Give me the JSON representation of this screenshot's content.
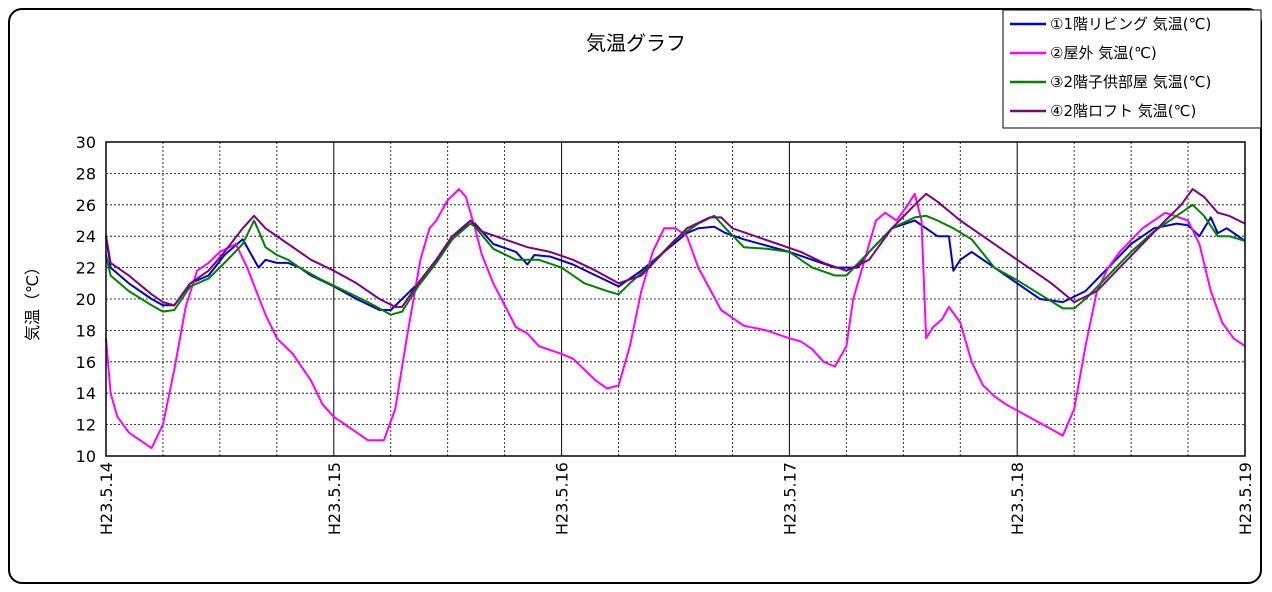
{
  "chart_data": {
    "type": "line",
    "title": "気温グラフ",
    "ylabel": "気温（℃）",
    "xlabel": "",
    "ylim": [
      10,
      30
    ],
    "yticks": [
      10,
      12,
      14,
      16,
      18,
      20,
      22,
      24,
      26,
      28,
      30
    ],
    "xlim": [
      0,
      5
    ],
    "x_tick_labels": [
      "H23.5.14",
      "H23.5.15",
      "H23.5.16",
      "H23.5.17",
      "H23.5.18",
      "H23.5.19"
    ],
    "x_tick_values": [
      0,
      1,
      2,
      3,
      4,
      5
    ],
    "grid": true,
    "legend_position": "top-right",
    "series": [
      {
        "name": "①1階リビング 気温(℃)",
        "color": "#0000cc",
        "x": [
          0,
          0.02,
          0.1,
          0.2,
          0.25,
          0.3,
          0.37,
          0.45,
          0.52,
          0.6,
          0.67,
          0.7,
          0.75,
          0.8,
          0.85,
          0.9,
          1.0,
          1.1,
          1.2,
          1.25,
          1.3,
          1.37,
          1.45,
          1.52,
          1.6,
          1.62,
          1.7,
          1.8,
          1.85,
          1.88,
          1.95,
          2.05,
          2.15,
          2.25,
          2.35,
          2.45,
          2.55,
          2.6,
          2.67,
          2.72,
          2.8,
          2.9,
          3.0,
          3.1,
          3.2,
          3.3,
          3.35,
          3.45,
          3.55,
          3.6,
          3.65,
          3.7,
          3.72,
          3.75,
          3.8,
          3.9,
          4.0,
          4.1,
          4.2,
          4.3,
          4.4,
          4.5,
          4.6,
          4.7,
          4.75,
          4.8,
          4.85,
          4.88,
          4.92,
          4.97,
          5.0
        ],
        "values": [
          24.0,
          22.0,
          21.0,
          20.0,
          19.6,
          19.6,
          21.0,
          21.5,
          22.8,
          23.8,
          22.0,
          22.5,
          22.3,
          22.3,
          22.0,
          21.5,
          20.8,
          20.0,
          19.3,
          19.3,
          20.0,
          21.0,
          22.5,
          24.0,
          24.8,
          24.8,
          23.5,
          23.0,
          22.2,
          22.8,
          22.7,
          22.2,
          21.5,
          20.8,
          21.8,
          23.0,
          24.2,
          24.5,
          24.6,
          24.2,
          23.8,
          23.4,
          23.0,
          22.5,
          22.0,
          22.0,
          23.0,
          24.5,
          25.0,
          24.5,
          24.0,
          24.0,
          21.8,
          22.5,
          23.0,
          22.0,
          21.0,
          20.0,
          19.8,
          20.5,
          22.0,
          23.5,
          24.5,
          24.8,
          24.7,
          24.0,
          25.2,
          24.2,
          24.5,
          24.0,
          23.7
        ]
      },
      {
        "name": "②屋外 気温(℃)",
        "color": "#ff00ff",
        "x": [
          0,
          0.02,
          0.05,
          0.1,
          0.15,
          0.2,
          0.25,
          0.3,
          0.35,
          0.4,
          0.45,
          0.5,
          0.57,
          0.62,
          0.7,
          0.75,
          0.82,
          0.9,
          0.95,
          1.0,
          1.05,
          1.1,
          1.15,
          1.22,
          1.27,
          1.32,
          1.38,
          1.42,
          1.45,
          1.5,
          1.55,
          1.58,
          1.62,
          1.65,
          1.7,
          1.8,
          1.85,
          1.9,
          2.0,
          2.05,
          2.1,
          2.15,
          2.2,
          2.25,
          2.3,
          2.35,
          2.4,
          2.45,
          2.5,
          2.55,
          2.6,
          2.7,
          2.8,
          2.9,
          3.0,
          3.05,
          3.1,
          3.15,
          3.2,
          3.25,
          3.28,
          3.33,
          3.38,
          3.42,
          3.47,
          3.52,
          3.55,
          3.58,
          3.6,
          3.63,
          3.67,
          3.7,
          3.75,
          3.8,
          3.85,
          3.9,
          3.95,
          4.05,
          4.15,
          4.2,
          4.25,
          4.3,
          4.35,
          4.4,
          4.45,
          4.55,
          4.65,
          4.75,
          4.8,
          4.85,
          4.9,
          4.95,
          5.0
        ],
        "values": [
          17.5,
          14.0,
          12.5,
          11.5,
          11.0,
          10.5,
          12.0,
          15.5,
          19.5,
          21.8,
          22.3,
          23.0,
          23.5,
          22.0,
          19.0,
          17.5,
          16.5,
          14.8,
          13.3,
          12.5,
          12.0,
          11.5,
          11.0,
          11.0,
          13.0,
          17.5,
          22.5,
          24.5,
          25.0,
          26.3,
          27.0,
          26.5,
          24.5,
          22.8,
          21.0,
          18.2,
          17.8,
          17.0,
          16.5,
          16.2,
          15.5,
          14.8,
          14.3,
          14.5,
          17.0,
          20.5,
          23.0,
          24.5,
          24.5,
          24.0,
          22.0,
          19.3,
          18.3,
          18.0,
          17.5,
          17.3,
          16.8,
          16.0,
          15.7,
          17.0,
          20.0,
          22.5,
          25.0,
          25.5,
          25.0,
          26.0,
          26.7,
          25.0,
          17.5,
          18.2,
          18.7,
          19.5,
          18.5,
          16.0,
          14.5,
          13.8,
          13.3,
          12.5,
          11.7,
          11.3,
          13.0,
          17.0,
          20.5,
          22.0,
          23.0,
          24.5,
          25.5,
          25.0,
          23.5,
          20.5,
          18.5,
          17.5,
          17.0
        ]
      },
      {
        "name": "③2階子供部屋 気温(℃)",
        "color": "#008000",
        "x": [
          0,
          0.02,
          0.1,
          0.2,
          0.25,
          0.3,
          0.37,
          0.45,
          0.52,
          0.6,
          0.65,
          0.68,
          0.7,
          0.75,
          0.8,
          0.85,
          0.95,
          1.05,
          1.15,
          1.25,
          1.3,
          1.37,
          1.45,
          1.52,
          1.6,
          1.62,
          1.7,
          1.8,
          1.9,
          2.0,
          2.1,
          2.2,
          2.25,
          2.3,
          2.4,
          2.5,
          2.6,
          2.67,
          2.72,
          2.8,
          2.9,
          3.0,
          3.1,
          3.2,
          3.25,
          3.35,
          3.45,
          3.55,
          3.6,
          3.65,
          3.72,
          3.8,
          3.9,
          4.0,
          4.1,
          4.2,
          4.25,
          4.3,
          4.4,
          4.5,
          4.6,
          4.7,
          4.77,
          4.82,
          4.88,
          4.93,
          5.0
        ],
        "values": [
          22.8,
          21.5,
          20.5,
          19.6,
          19.2,
          19.3,
          20.8,
          21.3,
          22.3,
          23.5,
          25.0,
          24.0,
          23.3,
          22.8,
          22.5,
          22.0,
          21.2,
          20.5,
          19.8,
          19.0,
          19.2,
          20.8,
          22.3,
          23.8,
          24.8,
          24.6,
          23.2,
          22.5,
          22.5,
          22.0,
          21.0,
          20.5,
          20.3,
          21.0,
          22.3,
          23.8,
          24.8,
          25.3,
          24.5,
          23.3,
          23.2,
          23.0,
          22.0,
          21.5,
          21.5,
          23.0,
          24.5,
          25.2,
          25.3,
          25.0,
          24.5,
          23.8,
          22.0,
          21.2,
          20.3,
          19.4,
          19.4,
          20.0,
          21.5,
          23.0,
          24.3,
          25.3,
          26.0,
          25.3,
          24.0,
          24.0,
          23.7
        ]
      },
      {
        "name": "④2階ロフト 気温(℃)",
        "color": "#800080",
        "x": [
          0,
          0.02,
          0.1,
          0.2,
          0.25,
          0.3,
          0.37,
          0.45,
          0.52,
          0.6,
          0.65,
          0.7,
          0.8,
          0.9,
          1.0,
          1.1,
          1.2,
          1.27,
          1.3,
          1.37,
          1.45,
          1.52,
          1.6,
          1.65,
          1.75,
          1.85,
          1.95,
          2.05,
          2.15,
          2.25,
          2.35,
          2.45,
          2.55,
          2.65,
          2.7,
          2.75,
          2.85,
          2.95,
          3.05,
          3.15,
          3.25,
          3.35,
          3.45,
          3.55,
          3.6,
          3.65,
          3.75,
          3.85,
          3.95,
          4.05,
          4.15,
          4.25,
          4.35,
          4.45,
          4.55,
          4.65,
          4.72,
          4.77,
          4.82,
          4.88,
          4.93,
          5.0
        ],
        "values": [
          24.0,
          22.3,
          21.5,
          20.3,
          19.8,
          19.6,
          21.0,
          21.8,
          23.0,
          24.5,
          25.3,
          24.5,
          23.5,
          22.5,
          21.8,
          21.0,
          20.0,
          19.5,
          19.5,
          21.0,
          22.5,
          24.0,
          25.0,
          24.3,
          23.8,
          23.3,
          23.0,
          22.5,
          21.8,
          21.0,
          21.5,
          23.0,
          24.5,
          25.2,
          25.2,
          24.5,
          24.0,
          23.5,
          23.0,
          22.3,
          21.8,
          22.5,
          24.5,
          26.0,
          26.7,
          26.2,
          25.0,
          24.0,
          23.0,
          22.0,
          21.0,
          19.8,
          20.5,
          22.0,
          23.5,
          25.0,
          26.0,
          27.0,
          26.5,
          25.5,
          25.3,
          24.8
        ]
      }
    ]
  }
}
